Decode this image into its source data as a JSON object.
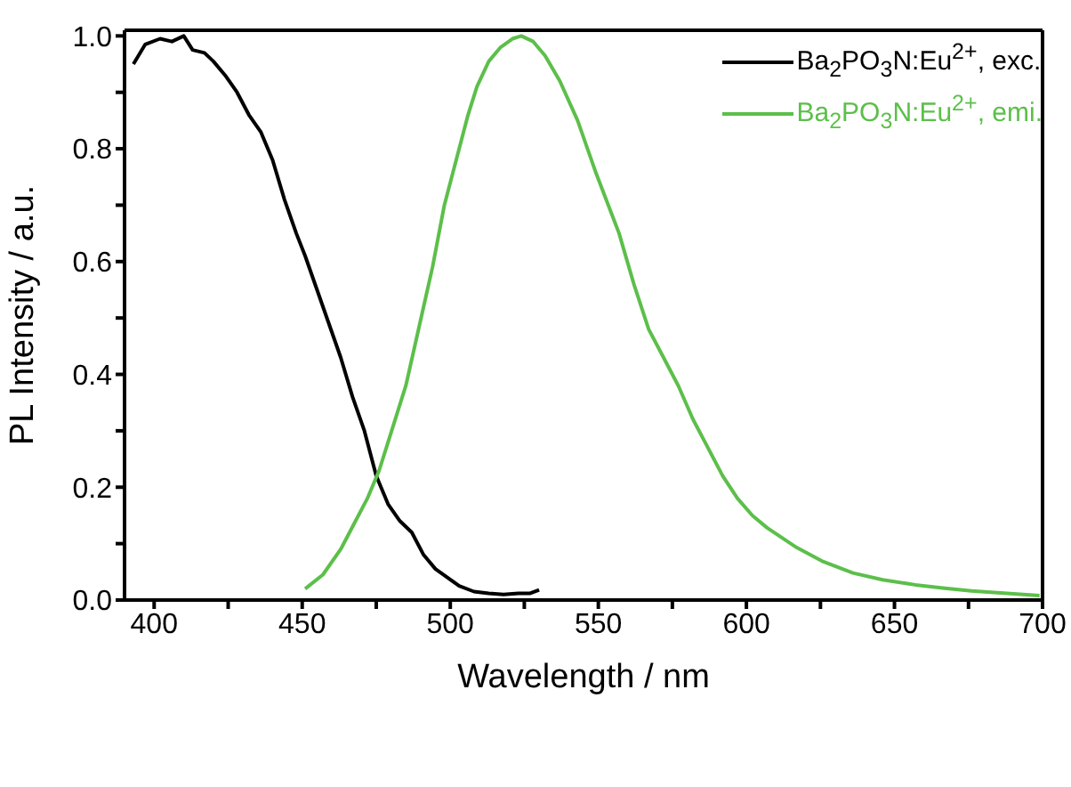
{
  "chart_data": {
    "type": "line",
    "xlabel": "Wavelength / nm",
    "ylabel": "PL Intensity / a.u.",
    "xlim": [
      390,
      700
    ],
    "ylim": [
      0,
      1.01
    ],
    "xticks": [
      400,
      {
        "value": 425,
        "label": null
      },
      450,
      {
        "value": 475,
        "label": null
      },
      500,
      {
        "value": 525,
        "label": null
      },
      550,
      {
        "value": 575,
        "label": null
      },
      600,
      {
        "value": 625,
        "label": null
      },
      650,
      {
        "value": 675,
        "label": null
      },
      700
    ],
    "yticks": [
      {
        "value": 0,
        "label": "0.0"
      },
      {
        "value": 0.1,
        "label": null
      },
      {
        "value": 0.2,
        "label": "0.2"
      },
      {
        "value": 0.3,
        "label": null
      },
      {
        "value": 0.4,
        "label": "0.4"
      },
      {
        "value": 0.5,
        "label": null
      },
      {
        "value": 0.6,
        "label": "0.6"
      },
      {
        "value": 0.7,
        "label": null
      },
      {
        "value": 0.8,
        "label": "0.8"
      },
      {
        "value": 0.9,
        "label": null
      },
      {
        "value": 1.0,
        "label": "1.0"
      }
    ],
    "grid": false,
    "legend": "top right",
    "marker": "none",
    "line_style": "solid",
    "series": [
      {
        "name": "Ba$_{2}$PO$_{3}$N:Eu$^{2+}$, exc.",
        "color": "#000000",
        "x": [
          393,
          397,
          402,
          406,
          410,
          413,
          417,
          420,
          424,
          428,
          432,
          436,
          440,
          444,
          448,
          451,
          455,
          459,
          463,
          467,
          471,
          475,
          479,
          483,
          487,
          491,
          495,
          499,
          503,
          508,
          513,
          518,
          523,
          527,
          530
        ],
        "values": [
          0.95,
          0.985,
          0.995,
          0.99,
          1.0,
          0.975,
          0.97,
          0.955,
          0.93,
          0.9,
          0.86,
          0.83,
          0.78,
          0.71,
          0.65,
          0.61,
          0.55,
          0.49,
          0.43,
          0.36,
          0.3,
          0.22,
          0.17,
          0.14,
          0.12,
          0.08,
          0.055,
          0.04,
          0.025,
          0.015,
          0.012,
          0.01,
          0.012,
          0.012,
          0.018
        ]
      },
      {
        "name": "Ba$_{2}$PO$_{3}$N:Eu$^{2+}$, emi.",
        "color": "#5cbf4a",
        "x": [
          451,
          457,
          463,
          468,
          472,
          476,
          479,
          485,
          491,
          494,
          498,
          502,
          506,
          509,
          513,
          517,
          521,
          524,
          528,
          532,
          537,
          543,
          549,
          557,
          562,
          567,
          572,
          577,
          582,
          587,
          592,
          597,
          602,
          607,
          617,
          626,
          636,
          646,
          657,
          667,
          676,
          688,
          699
        ],
        "values": [
          0.02,
          0.045,
          0.09,
          0.14,
          0.18,
          0.23,
          0.28,
          0.38,
          0.52,
          0.59,
          0.7,
          0.78,
          0.86,
          0.91,
          0.955,
          0.98,
          0.995,
          1.0,
          0.99,
          0.965,
          0.92,
          0.85,
          0.76,
          0.65,
          0.56,
          0.48,
          0.43,
          0.38,
          0.32,
          0.27,
          0.22,
          0.18,
          0.15,
          0.128,
          0.093,
          0.068,
          0.048,
          0.036,
          0.027,
          0.021,
          0.016,
          0.012,
          0.008
        ]
      }
    ]
  }
}
